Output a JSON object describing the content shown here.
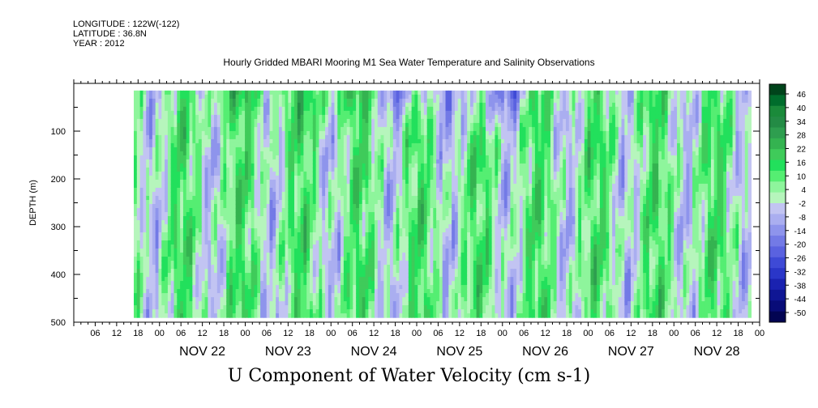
{
  "header": {
    "longitude": "LONGITUDE : 122W(-122)",
    "latitude": "LATITUDE : 36.8N",
    "year": "YEAR : 2012"
  },
  "chart_data": {
    "type": "heatmap",
    "title": "Hourly Gridded MBARI Mooring M1 Sea Water Temperature and Salinity Observations",
    "bottom_title": "U Component of Water Velocity (cm s-1)",
    "xlabel": "",
    "ylabel": "DEPTH (m)",
    "y_reversed": true,
    "ylim": [
      500,
      0
    ],
    "y_ticks": [
      100,
      200,
      300,
      400,
      500
    ],
    "x_hour_ticks": [
      "06",
      "12",
      "18",
      "00",
      "06",
      "12",
      "18",
      "00",
      "06",
      "12",
      "18",
      "00",
      "06",
      "12",
      "18",
      "00",
      "06",
      "12",
      "18",
      "00",
      "06",
      "12",
      "18",
      "00",
      "06",
      "12",
      "18",
      "00",
      "06",
      "12",
      "18",
      "00"
    ],
    "x_day_labels": [
      "NOV 22",
      "NOV 23",
      "NOV 24",
      "NOV 25",
      "NOV 26",
      "NOV 27",
      "NOV 28"
    ],
    "x_range_days": [
      "2012-11-21T00:00",
      "2012-11-29T00:00"
    ],
    "data_coverage_days": [
      21.7,
      28.9
    ],
    "data_depth_range": [
      15,
      490
    ],
    "colorbar": {
      "labels": [
        "46",
        "40",
        "34",
        "28",
        "22",
        "16",
        "10",
        "4",
        "-2",
        "-8",
        "-14",
        "-20",
        "-26",
        "-32",
        "-38",
        "-44",
        "-50"
      ],
      "colors": [
        "#00441b",
        "#006d2c",
        "#1a8a3a",
        "#238b45",
        "#2e9e4f",
        "#34b350",
        "#3fcb5a",
        "#22e05c",
        "#55ee72",
        "#8ef59c",
        "#b6f5bc",
        "#c2c4f2",
        "#aaaef0",
        "#8e94ec",
        "#737ae6",
        "#5a62e0",
        "#3e4ad6",
        "#2a36c8",
        "#1a22b0",
        "#0f1694",
        "#080c78",
        "#020452"
      ]
    },
    "data_note": "Values alternate between roughly -10 and +16 cm/s; strong positive (green) bands near surface on Nov 22-24, strong negative (blue) near surface Nov 25-26."
  }
}
